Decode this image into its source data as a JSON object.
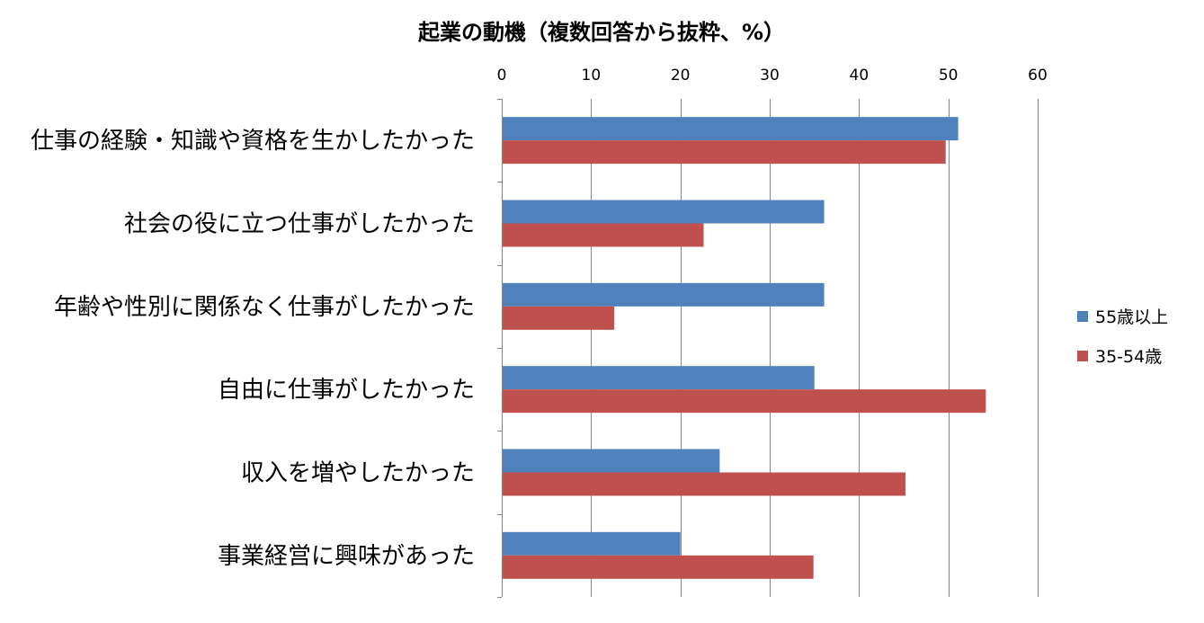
{
  "chart_data": {
    "type": "bar",
    "orientation": "horizontal",
    "title": "起業の動機（複数回答から抜粋、%）",
    "categories": [
      "仕事の経験・知識や資格を生かしたかった",
      "社会の役に立つ仕事がしたかった",
      "年齢や性別に関係なく仕事がしたかった",
      "自由に仕事がしたかった",
      "収入を増やしたかった",
      "事業経営に興味があった"
    ],
    "series": [
      {
        "name": "55歳以上",
        "color": "#4F81BD",
        "values": [
          51.1,
          36.1,
          36.1,
          35.0,
          24.4,
          20.0
        ]
      },
      {
        "name": "35-54歳",
        "color": "#C0504D",
        "values": [
          49.7,
          22.6,
          12.6,
          54.2,
          45.2,
          34.9
        ]
      }
    ],
    "x_axis": {
      "min": 0,
      "max": 60,
      "ticks": [
        0,
        10,
        20,
        30,
        40,
        50,
        60
      ],
      "position": "top"
    },
    "xlabel": "",
    "ylabel": "",
    "grid": true,
    "legend_position": "right"
  }
}
